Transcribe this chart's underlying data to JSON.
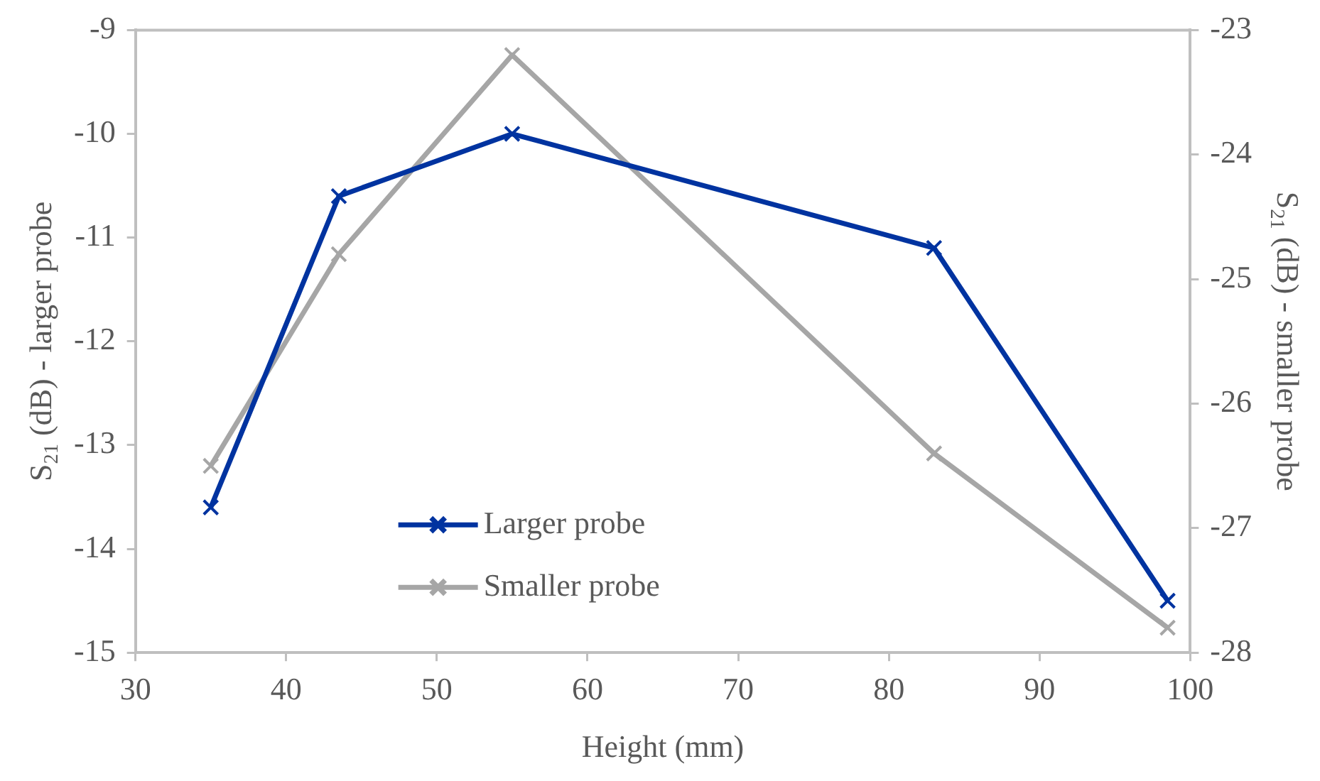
{
  "chart_data": {
    "type": "line",
    "xlabel": "Height (mm)",
    "ylabel": "S$_{21}$ (dB) - larger probe",
    "y2label": "S$_{21}$ (dB) - smaller probe",
    "x": [
      35,
      43.5,
      55,
      83,
      98.5
    ],
    "series": [
      {
        "name": "Larger probe",
        "color": "#0033a0",
        "values": [
          -13.6,
          -10.6,
          -10,
          -11.1,
          -14.5
        ]
      },
      {
        "name": "Smaller probe",
        "color": "#a6a6a6",
        "axis": "y2",
        "values": [
          -26.5,
          -24.8,
          -23.2,
          -26.4,
          -27.8
        ]
      }
    ],
    "xlim": [
      30,
      100
    ],
    "xticks": [
      30,
      40,
      50,
      60,
      70,
      80,
      90,
      100
    ],
    "ylim": [
      -15,
      -9
    ],
    "yticks": [
      -15,
      -14,
      -13,
      -12,
      -11,
      -10,
      -9
    ],
    "y2lim": [
      -28,
      -23
    ],
    "y2ticks": [
      -28,
      -27,
      -26,
      -25,
      -24,
      -23
    ],
    "grid": false,
    "legend": "bottom left",
    "marker": "cross",
    "line_style": "solid"
  }
}
